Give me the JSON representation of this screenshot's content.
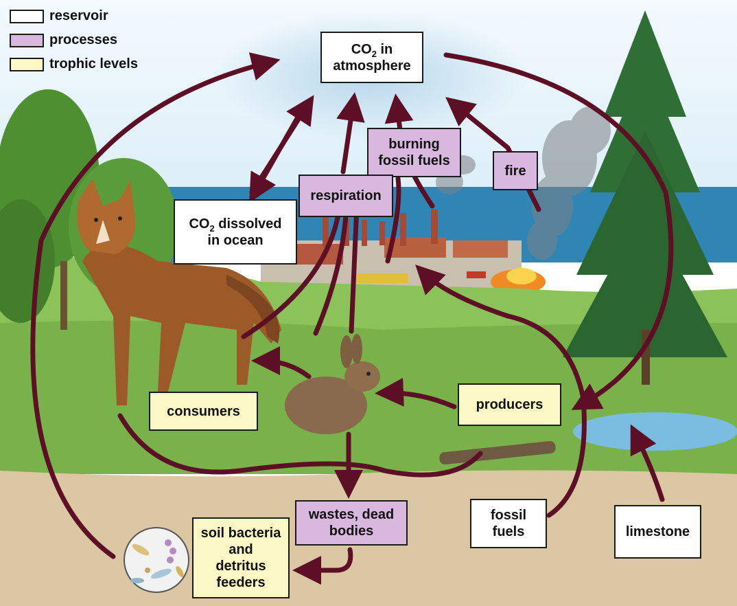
{
  "legend": {
    "reservoir": {
      "label": "reservoir",
      "color": "#ffffff"
    },
    "processes": {
      "label": "processes",
      "color": "#d8b8de"
    },
    "trophic": {
      "label": "trophic levels",
      "color": "#fbf8c6"
    }
  },
  "co2_atmosphere": {
    "line1_pre": "CO",
    "line1_sub": "2",
    "line1_post": " in",
    "line2": "atmosphere"
  },
  "co2_ocean": {
    "line1_pre": "CO",
    "line1_sub": "2",
    "line1_post": " dissolved",
    "line2": "in ocean"
  },
  "burning": {
    "line1": "burning",
    "line2": "fossil fuels"
  },
  "fire": {
    "label": "fire"
  },
  "respiration": {
    "label": "respiration"
  },
  "consumers": {
    "label": "consumers"
  },
  "producers": {
    "label": "producers"
  },
  "wastes": {
    "line1": "wastes, dead",
    "line2": "bodies"
  },
  "soil": {
    "line1": "soil bacteria",
    "line2": "and",
    "line3": "detritus",
    "line4": "feeders"
  },
  "fossil_fuels": {
    "line1": "fossil",
    "line2": "fuels"
  },
  "limestone": {
    "label": "limestone"
  },
  "colors": {
    "arrow": "#5c0f25",
    "sky": "#e6f3fb",
    "ocean": "#2f86b4",
    "grass": "#8cc25a",
    "soil": "#dcc7a5"
  }
}
